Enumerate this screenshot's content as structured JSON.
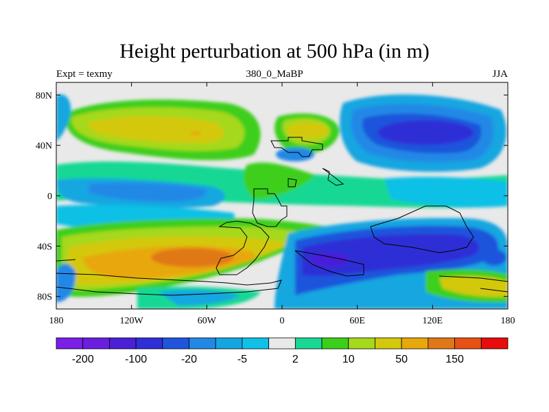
{
  "title": "Height perturbation at 500 hPa (in m)",
  "subtitle_left": "Expt = texmy",
  "subtitle_center": "380_0_MaBP",
  "subtitle_right": "JJA",
  "lat_labels": [
    "80N",
    "40N",
    "0",
    "40S",
    "80S"
  ],
  "lat_values": [
    80,
    40,
    0,
    -40,
    -80
  ],
  "lon_labels": [
    "180",
    "120W",
    "60W",
    "0",
    "60E",
    "120E",
    "180"
  ],
  "lon_values": [
    -180,
    -120,
    -60,
    0,
    60,
    120,
    180
  ],
  "colorbar": {
    "colors": [
      "#7a1ee8",
      "#6a1ee0",
      "#4a1fd8",
      "#2e2fd6",
      "#1f55dc",
      "#2288e6",
      "#14a6e0",
      "#10c0e6",
      "#e9e9e9",
      "#18d894",
      "#3ccf1a",
      "#a6d81c",
      "#d4c80c",
      "#e8a80a",
      "#e07818",
      "#e85014",
      "#e80c0c"
    ],
    "labels": [
      "-200",
      "-100",
      "-20",
      "-5",
      "2",
      "10",
      "50",
      "150"
    ]
  }
}
